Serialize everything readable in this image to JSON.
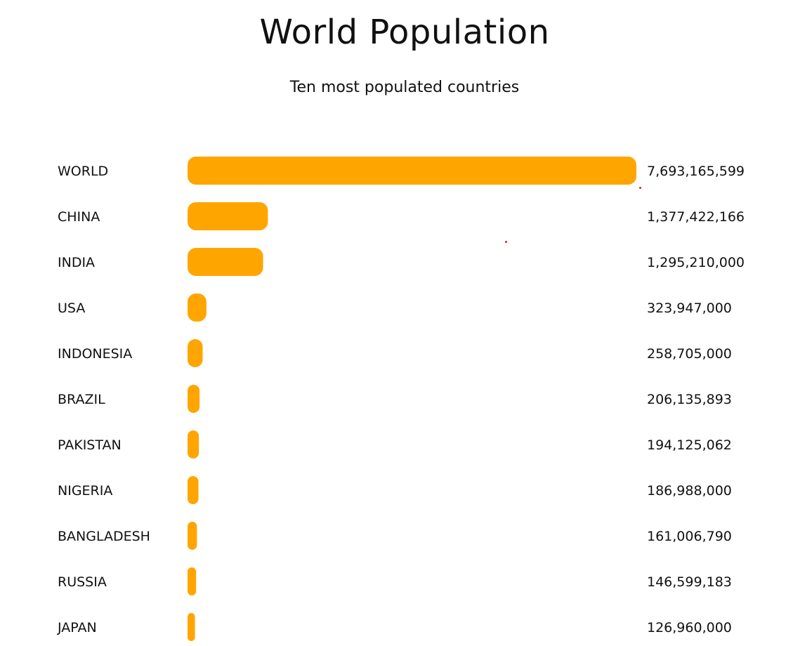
{
  "chart_data": {
    "type": "bar",
    "orientation": "horizontal",
    "title": "World Population",
    "subtitle": "Ten most populated countries",
    "categories": [
      "WORLD",
      "CHINA",
      "INDIA",
      "USA",
      "INDONESIA",
      "BRAZIL",
      "PAKISTAN",
      "NIGERIA",
      "BANGLADESH",
      "RUSSIA",
      "JAPAN"
    ],
    "values": [
      7693165599,
      1377422166,
      1295210000,
      323947000,
      258705000,
      206135893,
      194125062,
      186988000,
      161006790,
      146599183,
      126960000
    ],
    "value_labels": [
      "7,693,165,599",
      "1,377,422,166",
      "1,295,210,000",
      "323,947,000",
      "258,705,000",
      "206,135,893",
      "194,125,062",
      "186,988,000",
      "161,006,790",
      "146,599,183",
      "126,960,000"
    ],
    "xlim": [
      0,
      7693165599
    ],
    "grid": false,
    "legend": "none",
    "bar_color": "#ffa500",
    "text_color": "#111111"
  }
}
